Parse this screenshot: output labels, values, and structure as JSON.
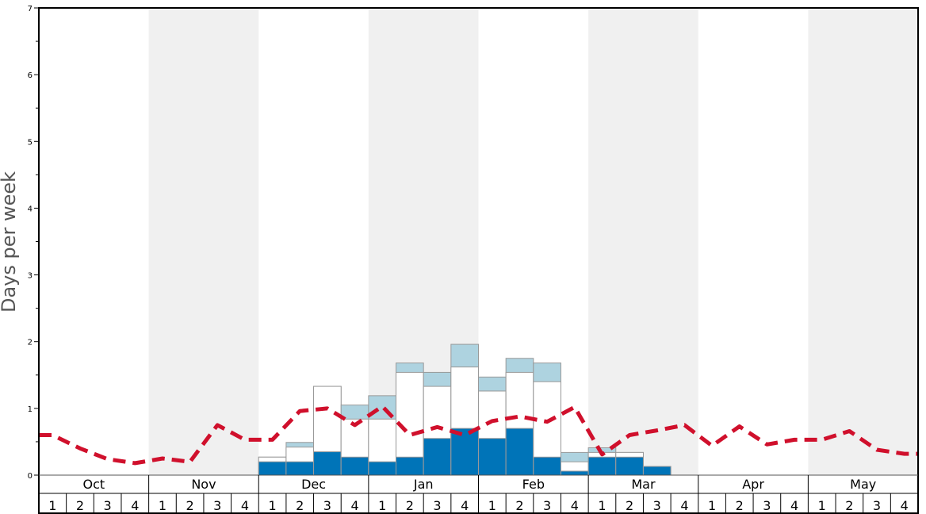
{
  "chart_data": {
    "type": "bar",
    "ylabel": "Days per week",
    "ylim": [
      0,
      7
    ],
    "yticks": [
      "0",
      "1",
      "2",
      "3",
      "4",
      "5",
      "6",
      "7"
    ],
    "months": [
      "Oct",
      "Nov",
      "Dec",
      "Jan",
      "Feb",
      "Mar",
      "Apr",
      "May"
    ],
    "weeks_per_month": [
      "1",
      "2",
      "3",
      "4"
    ],
    "colors": {
      "dark": "#0074b8",
      "light": "#ffffff",
      "extra": "#aed3e0",
      "average_line": "#d0102c",
      "band": "#f0f0f0"
    },
    "series": [
      {
        "values": [
          0,
          0,
          0,
          0,
          0,
          0,
          0,
          0,
          0.2,
          0.2,
          0.35,
          0.27,
          0.2,
          0.27,
          0.55,
          0.7,
          0.55,
          0.7,
          0.27,
          0.06,
          0.27,
          0.27,
          0.13,
          0,
          0,
          0,
          0,
          0,
          0,
          0,
          0,
          0
        ]
      },
      {
        "values": [
          0,
          0,
          0,
          0,
          0,
          0,
          0,
          0,
          0.27,
          0.42,
          1.33,
          0.84,
          0.84,
          1.54,
          1.33,
          1.62,
          1.26,
          1.54,
          1.4,
          0.2,
          0.34,
          0.34,
          0,
          0,
          0,
          0,
          0,
          0,
          0,
          0,
          0,
          0
        ]
      },
      {
        "values": [
          0,
          0,
          0,
          0,
          0,
          0,
          0,
          0,
          0.27,
          0.49,
          1.33,
          1.05,
          1.19,
          1.68,
          1.54,
          1.96,
          1.47,
          1.75,
          1.68,
          0.34,
          0.41,
          0.34,
          0.13,
          0,
          0,
          0,
          0,
          0,
          0,
          0,
          0,
          0
        ]
      },
      {
        "values": [
          0.6,
          0.4,
          0.24,
          0.18,
          0.25,
          0.2,
          0.75,
          0.53,
          0.53,
          0.96,
          1.0,
          0.75,
          1.03,
          0.6,
          0.72,
          0.6,
          0.81,
          0.88,
          0.8,
          1.02,
          0.31,
          0.6,
          0.67,
          0.75,
          0.44,
          0.73,
          0.46,
          0.53,
          0.53,
          0.66,
          0.38,
          0.32
        ]
      }
    ]
  }
}
